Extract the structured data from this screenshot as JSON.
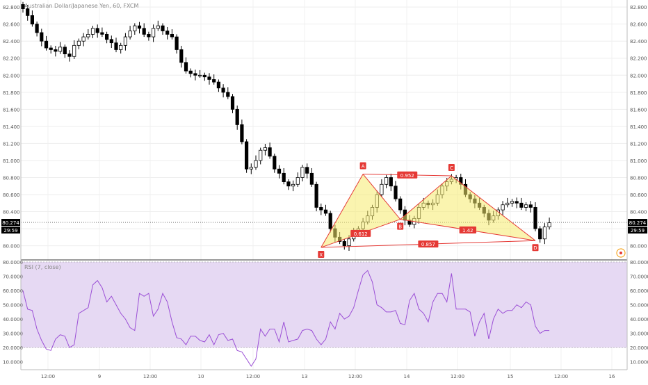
{
  "chart_data": [
    {
      "type": "candlestick",
      "title": "Australian Dollar/Japanese Yen, 60, FXCM",
      "ylim": [
        79.85,
        82.85
      ],
      "y_ticks": [
        "82.800",
        "82.600",
        "82.400",
        "82.200",
        "82.000",
        "81.800",
        "81.600",
        "81.400",
        "81.200",
        "81.000",
        "80.800",
        "80.600",
        "80.400",
        "80.200",
        "80.000"
      ],
      "x_ticks": [
        "12:00",
        "9",
        "12:00",
        "10",
        "12:00",
        "13",
        "12:00",
        "14",
        "12:00",
        "15",
        "12:00",
        "16"
      ],
      "grid": true,
      "last_price": "80.274",
      "countdown": "29:59",
      "closes": [
        82.78,
        82.7,
        82.6,
        82.5,
        82.4,
        82.32,
        82.3,
        82.28,
        82.33,
        82.25,
        82.22,
        82.35,
        82.4,
        82.45,
        82.48,
        82.55,
        82.5,
        82.48,
        82.42,
        82.38,
        82.3,
        82.35,
        82.45,
        82.52,
        82.58,
        82.55,
        82.48,
        82.45,
        82.55,
        82.58,
        82.52,
        82.48,
        82.45,
        82.3,
        82.15,
        82.05,
        82.02,
        82.0,
        82.0,
        81.98,
        81.95,
        81.92,
        81.85,
        81.8,
        81.75,
        81.6,
        81.42,
        81.22,
        80.9,
        80.92,
        81.0,
        81.12,
        81.15,
        81.05,
        80.9,
        80.85,
        80.75,
        80.7,
        80.72,
        80.8,
        80.92,
        80.85,
        80.72,
        80.45,
        80.42,
        80.38,
        80.2,
        80.1,
        80.05,
        80.0,
        80.08,
        80.15,
        80.2,
        80.28,
        80.35,
        80.45,
        80.6,
        80.72,
        80.8,
        80.7,
        80.55,
        80.42,
        80.3,
        80.25,
        80.32,
        80.45,
        80.5,
        80.48,
        80.5,
        80.6,
        80.7,
        80.75,
        80.78,
        80.8,
        80.72,
        80.6,
        80.55,
        80.5,
        80.45,
        80.38,
        80.3,
        80.35,
        80.42,
        80.48,
        80.5,
        80.52,
        80.5,
        80.45,
        80.48,
        80.45,
        80.2,
        80.08,
        80.22,
        80.27
      ],
      "patterns": {
        "points": [
          {
            "label": "X",
            "index": 64,
            "price": 79.98
          },
          {
            "label": "A",
            "index": 73,
            "price": 80.84
          },
          {
            "label": "B",
            "index": 81,
            "price": 80.31
          },
          {
            "label": "C",
            "index": 92,
            "price": 80.82
          },
          {
            "label": "D",
            "index": 110,
            "price": 80.06
          }
        ],
        "ratios": [
          {
            "from": "X",
            "to": "B",
            "value": "0.612"
          },
          {
            "from": "A",
            "to": "C",
            "value": "0.952"
          },
          {
            "from": "B",
            "to": "D",
            "value": "1.42"
          },
          {
            "from": "X",
            "to": "D",
            "value": "0.857"
          }
        ]
      }
    },
    {
      "type": "line",
      "title": "RSI (7, close)",
      "ylim": [
        5,
        80
      ],
      "y_ticks": [
        "80.0000",
        "70.0000",
        "60.0000",
        "50.0000",
        "40.0000",
        "30.0000",
        "20.0000",
        "10.0000"
      ],
      "band": [
        20,
        80
      ],
      "values": [
        60,
        47,
        46,
        33,
        25,
        19,
        18,
        26,
        29,
        28,
        20,
        22,
        44,
        46,
        48,
        64,
        67,
        62,
        52,
        56,
        50,
        44,
        40,
        34,
        32,
        58,
        56,
        58,
        42,
        47,
        58,
        52,
        38,
        27,
        26,
        22,
        28,
        28,
        25,
        24,
        29,
        22,
        29,
        30,
        25,
        26,
        18,
        17,
        12,
        7,
        12,
        33,
        28,
        33,
        33,
        24,
        38,
        24,
        25,
        26,
        32,
        33,
        32,
        26,
        22,
        26,
        38,
        33,
        44,
        40,
        42,
        48,
        60,
        71,
        74,
        66,
        50,
        48,
        45,
        45,
        46,
        37,
        36,
        53,
        58,
        47,
        44,
        38,
        52,
        58,
        58,
        52,
        72,
        47,
        47,
        47,
        45,
        28,
        38,
        44,
        26,
        40,
        47,
        44,
        46,
        46,
        50,
        48,
        52,
        50,
        35,
        30,
        32,
        32
      ]
    }
  ]
}
